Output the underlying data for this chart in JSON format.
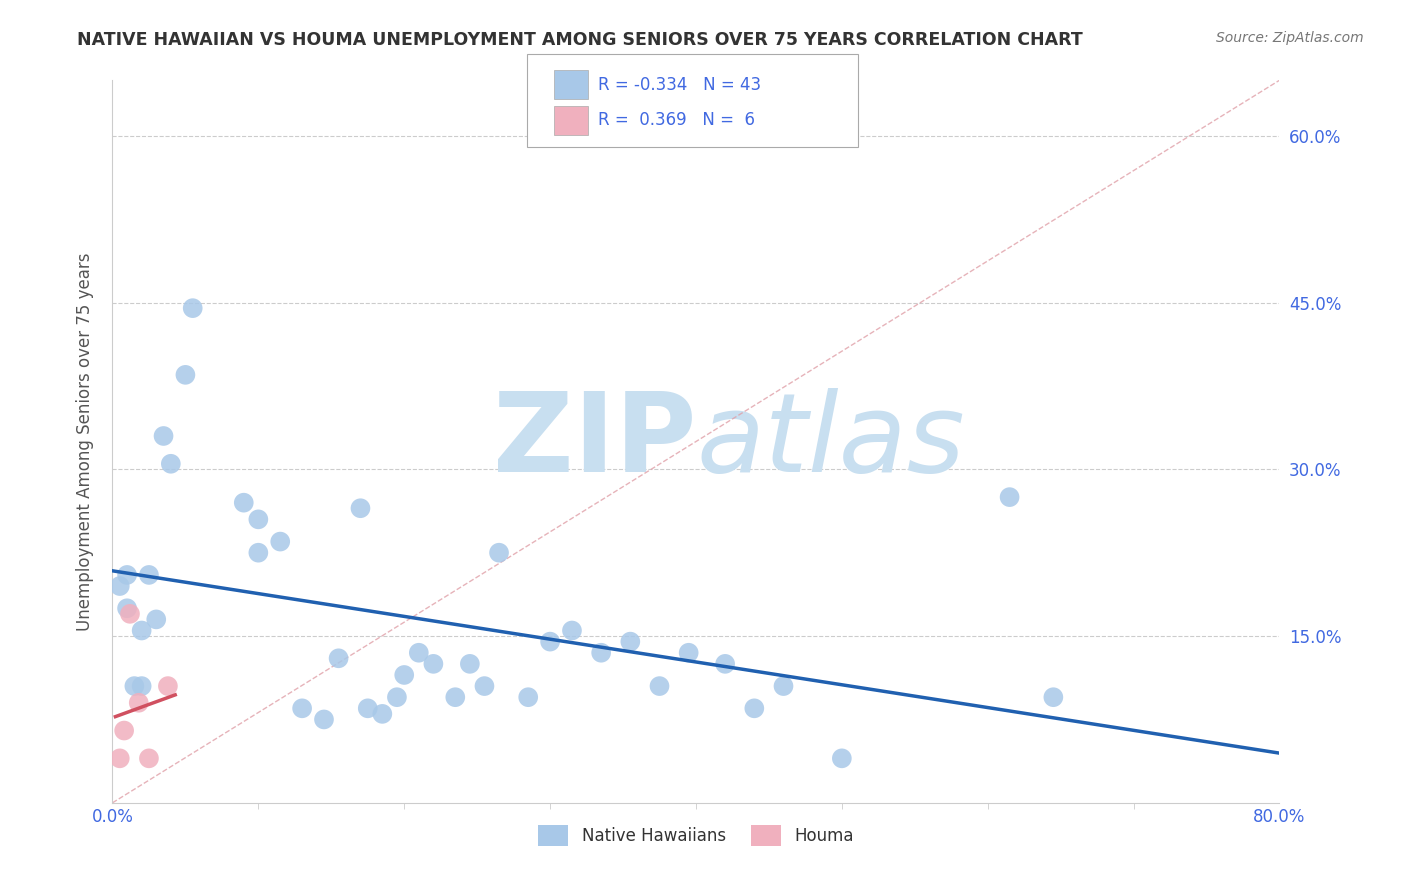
{
  "title": "NATIVE HAWAIIAN VS HOUMA UNEMPLOYMENT AMONG SENIORS OVER 75 YEARS CORRELATION CHART",
  "source": "Source: ZipAtlas.com",
  "ylabel": "Unemployment Among Seniors over 75 years",
  "xlim": [
    0.0,
    0.8
  ],
  "ylim": [
    0.0,
    0.65
  ],
  "ytick_positions": [
    0.15,
    0.3,
    0.45,
    0.6
  ],
  "ytick_labels": [
    "15.0%",
    "30.0%",
    "45.0%",
    "60.0%"
  ],
  "xtick_positions": [
    0.0,
    0.8
  ],
  "xtick_labels": [
    "0.0%",
    "80.0%"
  ],
  "native_hawaiian_x": [
    0.005,
    0.01,
    0.01,
    0.015,
    0.02,
    0.02,
    0.025,
    0.03,
    0.035,
    0.04,
    0.05,
    0.055,
    0.09,
    0.1,
    0.1,
    0.115,
    0.13,
    0.145,
    0.155,
    0.17,
    0.175,
    0.185,
    0.195,
    0.2,
    0.21,
    0.22,
    0.235,
    0.245,
    0.255,
    0.265,
    0.285,
    0.3,
    0.315,
    0.335,
    0.355,
    0.375,
    0.395,
    0.42,
    0.44,
    0.46,
    0.5,
    0.615,
    0.645
  ],
  "native_hawaiian_y": [
    0.195,
    0.205,
    0.175,
    0.105,
    0.155,
    0.105,
    0.205,
    0.165,
    0.33,
    0.305,
    0.385,
    0.445,
    0.27,
    0.255,
    0.225,
    0.235,
    0.085,
    0.075,
    0.13,
    0.265,
    0.085,
    0.08,
    0.095,
    0.115,
    0.135,
    0.125,
    0.095,
    0.125,
    0.105,
    0.225,
    0.095,
    0.145,
    0.155,
    0.135,
    0.145,
    0.105,
    0.135,
    0.125,
    0.085,
    0.105,
    0.04,
    0.275,
    0.095
  ],
  "houma_x": [
    0.005,
    0.008,
    0.012,
    0.018,
    0.025,
    0.038
  ],
  "houma_y": [
    0.04,
    0.065,
    0.17,
    0.09,
    0.04,
    0.105
  ],
  "r_native": -0.334,
  "n_native": 43,
  "r_houma": 0.369,
  "n_houma": 6,
  "native_color": "#a8c8e8",
  "houma_color": "#f0b0be",
  "trendline_native_color": "#2060b0",
  "trendline_houma_color": "#d05060",
  "ref_line_color": "#e0a0a8",
  "ref_line_style": "--",
  "watermark_zip": "ZIP",
  "watermark_atlas": "atlas",
  "watermark_color": "#c8dff0",
  "legend_r_color": "#4169e1",
  "background_color": "#ffffff",
  "grid_color": "#cccccc",
  "axis_color": "#cccccc",
  "tick_color": "#4169e1",
  "title_color": "#333333",
  "source_color": "#777777",
  "ylabel_color": "#555555"
}
